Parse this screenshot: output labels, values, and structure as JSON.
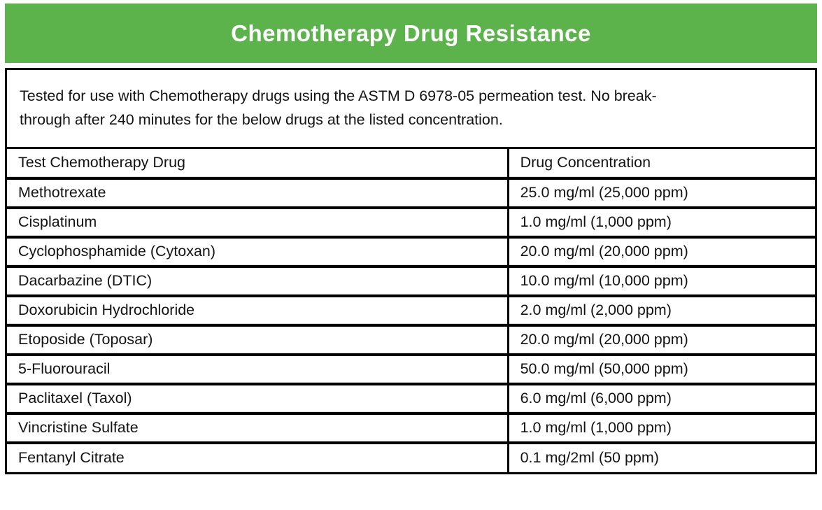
{
  "banner": {
    "title": "Chemotherapy Drug Resistance",
    "bg_color": "#5CB34C",
    "text_color": "#FFFFFF"
  },
  "intro": {
    "text": "Tested for use with Chemotherapy drugs using the ASTM D 6978-05 permeation test. No break-\nthrough after 240 minutes for the below drugs at the listed concentration."
  },
  "table": {
    "columns": [
      "Test Chemotherapy Drug",
      "Drug Concentration"
    ],
    "rows": [
      [
        "Methotrexate",
        "25.0 mg/ml (25,000 ppm)"
      ],
      [
        "Cisplatinum",
        "1.0 mg/ml (1,000 ppm)"
      ],
      [
        "Cyclophosphamide (Cytoxan)",
        "20.0 mg/ml (20,000 ppm)"
      ],
      [
        "Dacarbazine (DTIC)",
        "10.0 mg/ml (10,000 ppm)"
      ],
      [
        "Doxorubicin Hydrochloride",
        "2.0 mg/ml (2,000 ppm)"
      ],
      [
        "Etoposide (Toposar)",
        "20.0 mg/ml (20,000 ppm)"
      ],
      [
        "5-Fluorouracil",
        "50.0 mg/ml (50,000 ppm)"
      ],
      [
        "Paclitaxel (Taxol)",
        "6.0 mg/ml (6,000 ppm)"
      ],
      [
        "Vincristine Sulfate",
        "1.0 mg/ml (1,000 ppm)"
      ],
      [
        "Fentanyl Citrate",
        "0.1 mg/2ml (50 ppm)"
      ]
    ]
  }
}
